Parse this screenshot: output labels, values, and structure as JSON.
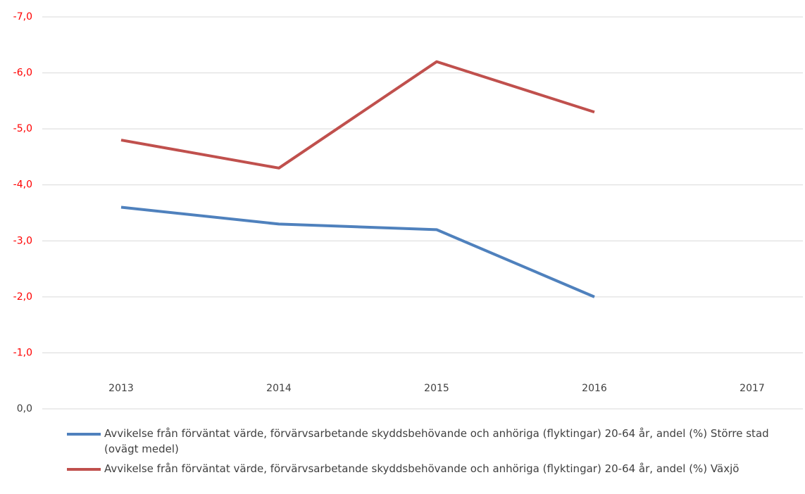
{
  "chart_data": {
    "type": "line",
    "categories": [
      "2013",
      "2014",
      "2015",
      "2016",
      "2017"
    ],
    "series": [
      {
        "name": "Avvikelse från förväntat värde, förvärvsarbetande skyddsbehövande och anhöriga (flyktingar) 20-64 år, andel (%) Större stad (ovägt medel)",
        "color": "#4f81bd",
        "values": [
          -3.6,
          -3.3,
          -3.2,
          -2.0,
          null
        ]
      },
      {
        "name": "Avvikelse från förväntat värde, förvärvsarbetande skyddsbehövande och anhöriga (flyktingar) 20-64 år, andel (%) Växjö",
        "color": "#c0504d",
        "values": [
          -4.8,
          -4.3,
          -6.2,
          -5.3,
          null
        ]
      }
    ],
    "ylim": [
      0,
      -7
    ],
    "yticks": [
      {
        "value": 0,
        "label": "0,0"
      },
      {
        "value": -1,
        "label": "-1,0"
      },
      {
        "value": -2,
        "label": "-2,0"
      },
      {
        "value": -3,
        "label": "-3,0"
      },
      {
        "value": -4,
        "label": "-4,0"
      },
      {
        "value": -5,
        "label": "-5,0"
      },
      {
        "value": -6,
        "label": "-6,0"
      },
      {
        "value": -7,
        "label": "-7,0"
      }
    ],
    "ytick_label_colors": [
      "#404040",
      "#ff0000",
      "#ff0000",
      "#ff0000",
      "#ff0000",
      "#ff0000",
      "#ff0000",
      "#ff0000"
    ],
    "grid": true,
    "legend": "bottom"
  }
}
